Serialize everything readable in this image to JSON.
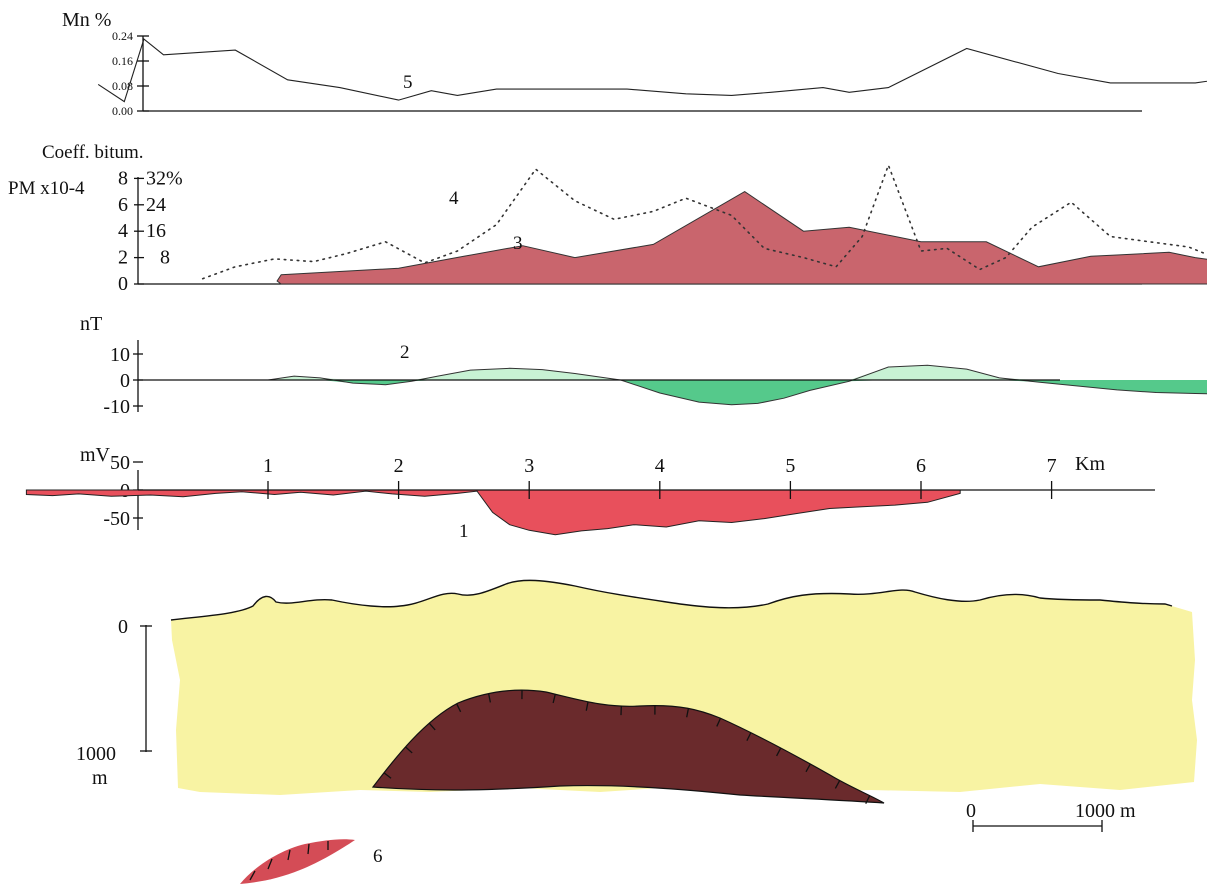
{
  "chart_data": [
    {
      "type": "line",
      "panel": "manganese",
      "ylabel": "Mn %",
      "yticks": [
        "0.24",
        "0.16",
        "0.08",
        "0.00"
      ],
      "ytick_values": [
        0.24,
        0.16,
        0.08,
        0.0
      ],
      "ylim": [
        0,
        0.28
      ],
      "xlim_km": [
        -1.0,
        8.0
      ],
      "series": [
        {
          "name": "5",
          "x": [
            -0.3,
            -0.1,
            0.05,
            0.2,
            0.75,
            1.15,
            1.55,
            2.0,
            2.25,
            2.45,
            2.75,
            2.95,
            3.25,
            3.75,
            4.2,
            4.55,
            4.85,
            5.25,
            5.45,
            5.75,
            6.35,
            7.05,
            7.45,
            8.1,
            8.7
          ],
          "y": [
            0.085,
            0.03,
            0.23,
            0.18,
            0.195,
            0.1,
            0.075,
            0.035,
            0.065,
            0.05,
            0.07,
            0.07,
            0.07,
            0.07,
            0.055,
            0.05,
            0.06,
            0.075,
            0.06,
            0.075,
            0.2,
            0.12,
            0.09,
            0.09,
            0.125
          ]
        }
      ]
    },
    {
      "type": "area",
      "panel": "bitumen",
      "title": "Coeff. bitum.",
      "ylabel": "PM x10-4",
      "yticks_left": [
        "8",
        "6",
        "4",
        "2",
        "0"
      ],
      "yticks_right": [
        "32%",
        "24",
        "16",
        "8"
      ],
      "ylim": [
        0,
        8
      ],
      "xlim_km": [
        -1.0,
        8.0
      ],
      "series": [
        {
          "name": "3",
          "style": "filled-area",
          "x": [
            1.1,
            2.0,
            2.5,
            2.95,
            3.35,
            3.95,
            4.65,
            5.1,
            5.45,
            6.0,
            6.5,
            6.9,
            7.3,
            7.5,
            7.9,
            8.1,
            8.45,
            8.9,
            9.1
          ],
          "y": [
            0.7,
            1.2,
            2.1,
            2.9,
            2.0,
            3.0,
            7.0,
            4.0,
            4.3,
            3.2,
            3.2,
            1.3,
            2.1,
            2.2,
            2.4,
            2.0,
            1.5,
            1.3,
            1.8
          ]
        },
        {
          "name": "4",
          "style": "dotted",
          "x": [
            0.5,
            0.75,
            1.05,
            1.35,
            1.6,
            1.9,
            2.2,
            2.45,
            2.75,
            3.05,
            3.35,
            3.65,
            3.95,
            4.2,
            4.55,
            4.8,
            5.1,
            5.35,
            5.55,
            5.75,
            6.0,
            6.2,
            6.45,
            6.65,
            6.85,
            7.15,
            7.45,
            7.75,
            8.05,
            8.35,
            8.75,
            9.1
          ],
          "y": [
            0.4,
            1.3,
            1.9,
            1.7,
            2.3,
            3.2,
            1.6,
            2.5,
            4.5,
            8.7,
            6.3,
            4.9,
            5.5,
            6.5,
            5.2,
            2.7,
            2.0,
            1.3,
            3.6,
            9.0,
            2.5,
            2.7,
            1.1,
            2.0,
            4.3,
            6.2,
            3.6,
            3.2,
            2.8,
            1.6,
            1.0,
            1.6
          ]
        }
      ]
    },
    {
      "type": "area",
      "panel": "magnetic",
      "ylabel": "nT",
      "yticks": [
        "10",
        "0",
        "-10"
      ],
      "ytick_values": [
        10,
        0,
        -10
      ],
      "ylim": [
        -12,
        12
      ],
      "xlim_km": [
        -1.0,
        8.0
      ],
      "series": [
        {
          "name": "2",
          "x": [
            1.0,
            1.2,
            1.4,
            1.65,
            1.9,
            2.1,
            2.3,
            2.55,
            2.85,
            3.1,
            3.35,
            3.7,
            4.0,
            4.3,
            4.55,
            4.75,
            4.95,
            5.15,
            5.45,
            5.75,
            6.05,
            6.35,
            6.6,
            6.9,
            7.2,
            7.5,
            7.8,
            8.1,
            8.4,
            8.7,
            9.1
          ],
          "y": [
            0,
            1.5,
            0.8,
            -1.2,
            -1.8,
            -0.5,
            1.5,
            3.8,
            4.5,
            4.0,
            2.5,
            0,
            -5,
            -8.5,
            -9.5,
            -9,
            -7,
            -4,
            -0.5,
            5,
            5.7,
            4.2,
            0.8,
            -0.8,
            -2.3,
            -3.8,
            -4.8,
            -5.2,
            -5.5,
            -5.5,
            -5.5
          ]
        }
      ]
    },
    {
      "type": "area",
      "panel": "self-potential",
      "ylabel": "mV",
      "yticks": [
        "50",
        "0",
        "-50"
      ],
      "ytick_values": [
        50,
        0,
        -50
      ],
      "ylim": [
        -70,
        70
      ],
      "xlabel": "Km",
      "xticks": [
        "1",
        "2",
        "3",
        "4",
        "5",
        "6",
        "7"
      ],
      "xtick_values": [
        1,
        2,
        3,
        4,
        5,
        6,
        7
      ],
      "xlim_km": [
        -1.0,
        8.0
      ],
      "series": [
        {
          "name": "1",
          "x": [
            -0.85,
            -0.65,
            -0.45,
            -0.2,
            0.1,
            0.35,
            0.6,
            0.8,
            1.05,
            1.25,
            1.5,
            1.75,
            1.95,
            2.2,
            2.45,
            2.6,
            2.72,
            2.85,
            3.0,
            3.2,
            3.4,
            3.6,
            3.8,
            4.05,
            4.3,
            4.55,
            4.8,
            5.05,
            5.3,
            5.55,
            5.8,
            6.05,
            6.3
          ],
          "y": [
            -8,
            -10,
            -7,
            -11,
            -9,
            -12,
            -6,
            -3,
            -8,
            -4,
            -9,
            -2,
            -7,
            -11,
            -6,
            -2,
            -40,
            -62,
            -72,
            -80,
            -73,
            -69,
            -62,
            -66,
            -55,
            -58,
            -51,
            -42,
            -33,
            -30,
            -27,
            -22,
            -6
          ]
        }
      ]
    },
    {
      "type": "area",
      "panel": "geological-section",
      "yticks": [
        "0",
        "1000",
        "m"
      ],
      "ytick_values": [
        0,
        1000
      ],
      "ylim_m": [
        -400,
        1500
      ],
      "series": [
        {
          "name": "surface"
        },
        {
          "name": "6"
        }
      ]
    }
  ],
  "labels": {
    "curve_5": "5",
    "curve_4": "4",
    "curve_3": "3",
    "curve_2": "2",
    "curve_1": "1",
    "legend_6": "6"
  },
  "scale_bar": {
    "start": "0",
    "end": "1000 m"
  },
  "colors": {
    "bitumen_fill": "#c9656d",
    "magnetic_pos": "#c8f2d4",
    "magnetic_neg": "#55c98b",
    "sp_fill": "#e8505c",
    "section_fill": "#f8f3a3",
    "body_fill": "#6a2a2c",
    "legend_fill": "#d44c56"
  }
}
